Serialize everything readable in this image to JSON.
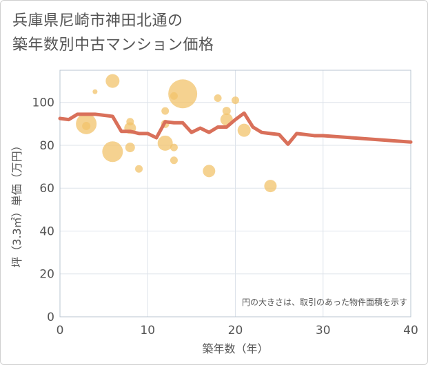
{
  "chart_data": {
    "type": "scatter",
    "title_lines": [
      "兵庫県尼崎市神田北通の",
      "築年数別中古マンション価格"
    ],
    "xlabel": "築年数（年）",
    "ylabel": "坪（3.3㎡）単価（万円）",
    "xlim": [
      0,
      40
    ],
    "ylim": [
      0,
      115
    ],
    "x_ticks": [
      0,
      10,
      20,
      30,
      40
    ],
    "y_ticks": [
      0,
      20,
      40,
      60,
      80,
      100
    ],
    "note": "円の大きさは、取引のあった物件面積を示す",
    "colors": {
      "bubble": "#f2c36b",
      "line": "#d9705a",
      "grid": "#dde3ea",
      "plot_border": "#b8c4d1",
      "text": "#555555"
    },
    "bubbles": [
      {
        "x": 3,
        "y": 90,
        "size": 30
      },
      {
        "x": 3,
        "y": 89,
        "size": 12
      },
      {
        "x": 4,
        "y": 105,
        "size": 7
      },
      {
        "x": 6,
        "y": 110,
        "size": 20
      },
      {
        "x": 6,
        "y": 77,
        "size": 30
      },
      {
        "x": 8,
        "y": 88,
        "size": 17
      },
      {
        "x": 8,
        "y": 91,
        "size": 11
      },
      {
        "x": 8,
        "y": 79,
        "size": 14
      },
      {
        "x": 9,
        "y": 69,
        "size": 11
      },
      {
        "x": 12,
        "y": 81,
        "size": 22
      },
      {
        "x": 12,
        "y": 90,
        "size": 12
      },
      {
        "x": 12,
        "y": 96,
        "size": 11
      },
      {
        "x": 13,
        "y": 103,
        "size": 11
      },
      {
        "x": 13,
        "y": 79,
        "size": 11
      },
      {
        "x": 13,
        "y": 73,
        "size": 11
      },
      {
        "x": 14,
        "y": 104,
        "size": 42
      },
      {
        "x": 17,
        "y": 68,
        "size": 18
      },
      {
        "x": 18,
        "y": 102,
        "size": 11
      },
      {
        "x": 19,
        "y": 96,
        "size": 12
      },
      {
        "x": 19,
        "y": 92,
        "size": 18
      },
      {
        "x": 20,
        "y": 101,
        "size": 11
      },
      {
        "x": 21,
        "y": 87,
        "size": 19
      },
      {
        "x": 24,
        "y": 61,
        "size": 18
      }
    ],
    "series": [
      {
        "name": "average",
        "x": [
          0,
          1,
          2,
          3,
          4,
          5,
          6,
          7,
          8,
          9,
          10,
          11,
          12,
          13,
          14,
          15,
          16,
          17,
          18,
          19,
          20,
          21,
          22,
          23,
          24,
          25,
          26,
          27,
          28,
          29,
          30,
          40
        ],
        "values": [
          92.5,
          92,
          94.5,
          94.5,
          94.5,
          94,
          93.5,
          86.5,
          86.5,
          85.5,
          85.5,
          83.5,
          91,
          90.5,
          90.5,
          86,
          88,
          86,
          88.5,
          88.5,
          92,
          95,
          88.5,
          86,
          85.5,
          85,
          80.5,
          85.5,
          85,
          84.5,
          84.5,
          81.5
        ]
      }
    ]
  }
}
